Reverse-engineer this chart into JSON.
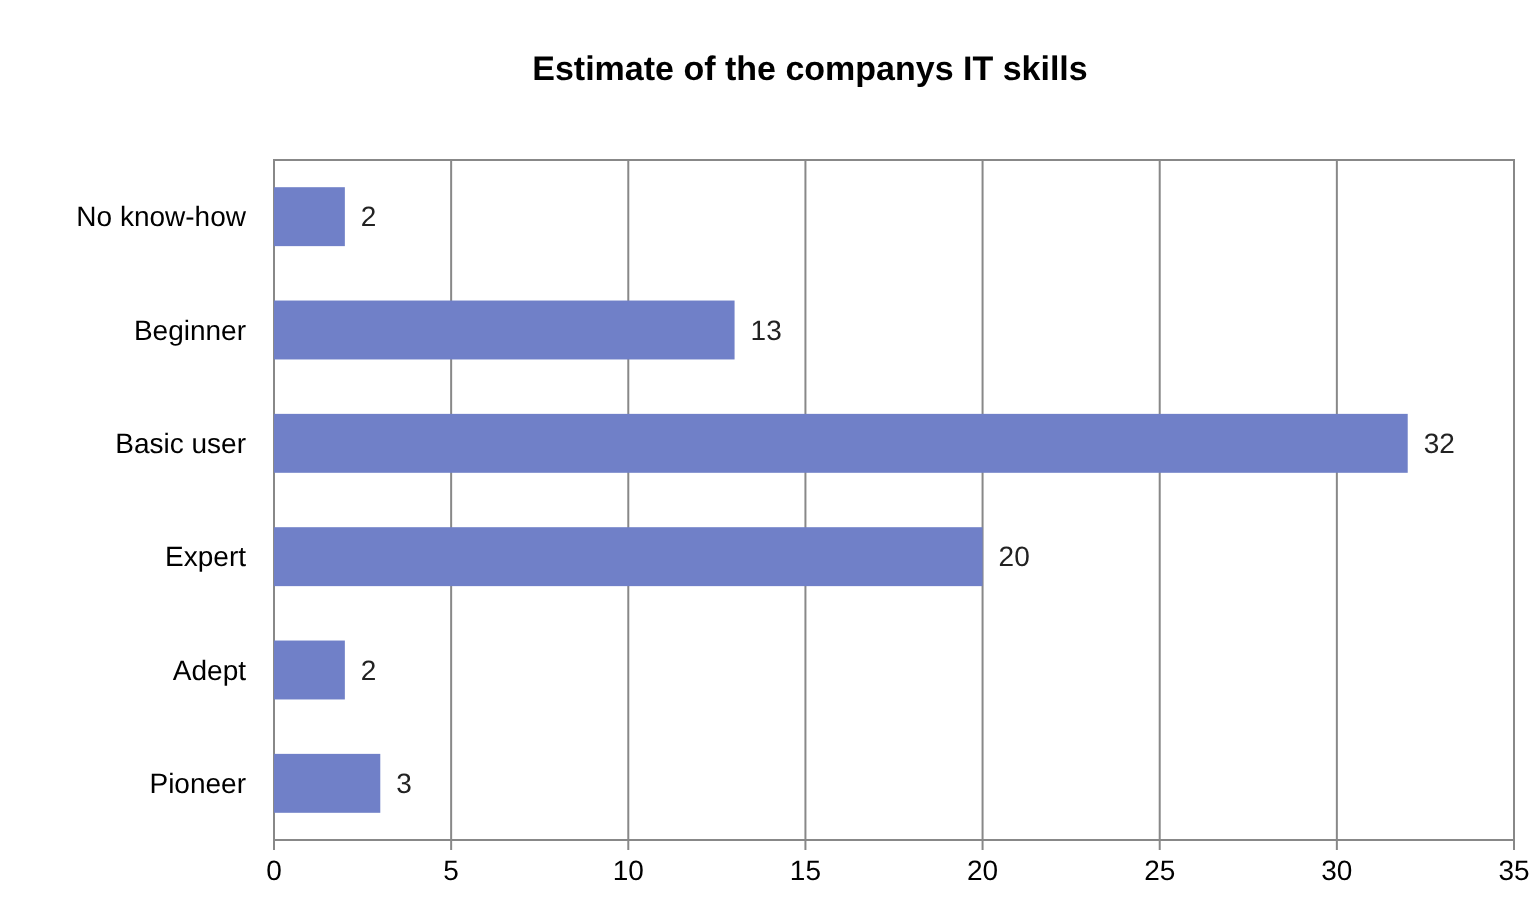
{
  "chart_data": {
    "type": "bar",
    "orientation": "horizontal",
    "title": "Estimate of the companys IT skills",
    "categories": [
      "No know-how",
      "Beginner",
      "Basic user",
      "Expert",
      "Adept",
      "Pioneer"
    ],
    "values": [
      2,
      13,
      32,
      20,
      2,
      3
    ],
    "color": "#7080c8",
    "xlim": [
      0,
      35
    ],
    "xticks": [
      0,
      5,
      10,
      15,
      20,
      25,
      30,
      35
    ],
    "grid": "x",
    "data_labels": true
  }
}
